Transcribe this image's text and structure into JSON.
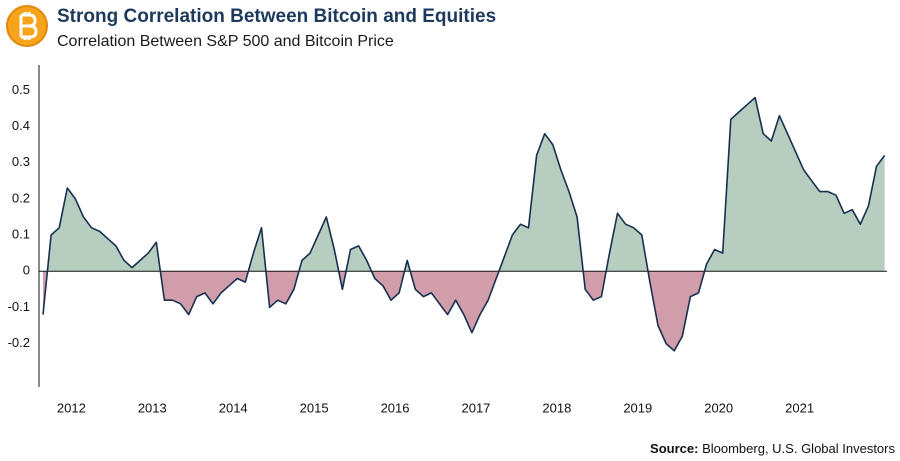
{
  "chart_data": {
    "type": "area",
    "title": "Strong Correlation Between Bitcoin and Equities",
    "subtitle": "Correlation Between S&P 500 and Bitcoin Price",
    "source_label": "Source:",
    "source": "Bloomberg, U.S. Global Investors",
    "x": [
      2011.65,
      2011.75,
      2011.85,
      2011.95,
      2012.05,
      2012.15,
      2012.25,
      2012.35,
      2012.45,
      2012.55,
      2012.65,
      2012.75,
      2012.85,
      2012.95,
      2013.05,
      2013.15,
      2013.25,
      2013.35,
      2013.45,
      2013.55,
      2013.65,
      2013.75,
      2013.85,
      2013.95,
      2014.05,
      2014.15,
      2014.25,
      2014.35,
      2014.45,
      2014.55,
      2014.65,
      2014.75,
      2014.85,
      2014.95,
      2015.05,
      2015.15,
      2015.25,
      2015.35,
      2015.45,
      2015.55,
      2015.65,
      2015.75,
      2015.85,
      2015.95,
      2016.05,
      2016.15,
      2016.25,
      2016.35,
      2016.45,
      2016.55,
      2016.65,
      2016.75,
      2016.85,
      2016.95,
      2017.05,
      2017.15,
      2017.25,
      2017.35,
      2017.45,
      2017.55,
      2017.65,
      2017.75,
      2017.85,
      2017.95,
      2018.05,
      2018.15,
      2018.25,
      2018.35,
      2018.45,
      2018.55,
      2018.65,
      2018.75,
      2018.85,
      2018.95,
      2019.05,
      2019.15,
      2019.25,
      2019.35,
      2019.45,
      2019.55,
      2019.65,
      2019.75,
      2019.85,
      2019.95,
      2020.05,
      2020.15,
      2020.25,
      2020.35,
      2020.45,
      2020.55,
      2020.65,
      2020.75,
      2020.85,
      2020.95,
      2021.05,
      2021.15,
      2021.25,
      2021.35,
      2021.45,
      2021.55,
      2021.65,
      2021.75,
      2021.85,
      2021.95,
      2022.05
    ],
    "values": [
      -0.12,
      0.1,
      0.12,
      0.23,
      0.2,
      0.15,
      0.12,
      0.11,
      0.09,
      0.07,
      0.03,
      0.01,
      0.03,
      0.05,
      0.08,
      -0.08,
      -0.08,
      -0.09,
      -0.12,
      -0.07,
      -0.06,
      -0.09,
      -0.06,
      -0.04,
      -0.02,
      -0.03,
      0.05,
      0.12,
      -0.1,
      -0.08,
      -0.09,
      -0.05,
      0.03,
      0.05,
      0.1,
      0.15,
      0.06,
      -0.05,
      0.06,
      0.07,
      0.03,
      -0.02,
      -0.04,
      -0.08,
      -0.06,
      0.03,
      -0.05,
      -0.07,
      -0.06,
      -0.09,
      -0.12,
      -0.08,
      -0.12,
      -0.17,
      -0.12,
      -0.08,
      -0.02,
      0.04,
      0.1,
      0.13,
      0.12,
      0.32,
      0.38,
      0.35,
      0.28,
      0.22,
      0.15,
      -0.05,
      -0.08,
      -0.07,
      0.05,
      0.16,
      0.13,
      0.12,
      0.1,
      -0.03,
      -0.15,
      -0.2,
      -0.22,
      -0.18,
      -0.07,
      -0.06,
      0.02,
      0.06,
      0.05,
      0.42,
      0.44,
      0.46,
      0.48,
      0.38,
      0.36,
      0.43,
      0.38,
      0.33,
      0.28,
      0.25,
      0.22,
      0.22,
      0.21,
      0.16,
      0.17,
      0.13,
      0.18,
      0.29,
      0.32
    ],
    "line_color": "#17304f",
    "positive_color": "#b7cdc0",
    "negative_color": "#d29dab",
    "xlim": [
      2011.6,
      2022.08
    ],
    "xticks": [
      2012,
      2013,
      2014,
      2015,
      2016,
      2017,
      2018,
      2019,
      2020,
      2021
    ],
    "ylim": [
      -0.32,
      0.57
    ],
    "yticks": [
      0.5,
      0.4,
      0.3,
      0.2,
      0.1,
      0,
      -0.1,
      -0.2
    ]
  }
}
